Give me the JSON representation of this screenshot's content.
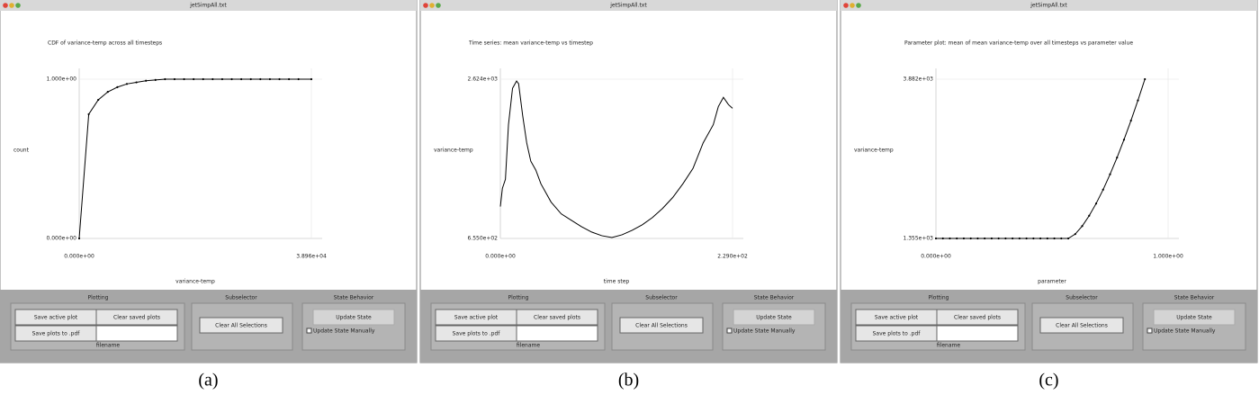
{
  "windows": [
    {
      "title": "jetSimpAll.txt",
      "plotting": "Plotting",
      "save_active": "Save active plot",
      "clear_saved": "Clear saved plots",
      "save_pdf": "Save plots to .pdf",
      "filename": "filename",
      "subselector": "Subselector",
      "clear_all": "Clear All Selections",
      "state_behavior": "State Behavior",
      "update_state": "Update State",
      "update_manually": "Update State Manually",
      "caption": "(a)"
    },
    {
      "title": "jetSimpAll.txt",
      "plotting": "Plotting",
      "save_active": "Save active plot",
      "clear_saved": "Clear saved plots",
      "save_pdf": "Save plots to .pdf",
      "filename": "filename",
      "subselector": "Subselector",
      "clear_all": "Clear All Selections",
      "state_behavior": "State Behavior",
      "update_state": "Update State",
      "update_manually": "Update State Manually",
      "caption": "(b)"
    },
    {
      "title": "jetSimpAll.txt",
      "plotting": "Plotting",
      "save_active": "Save active plot",
      "clear_saved": "Clear saved plots",
      "save_pdf": "Save plots to .pdf",
      "filename": "filename",
      "subselector": "Subselector",
      "clear_all": "Clear All Selections",
      "state_behavior": "State Behavior",
      "update_state": "Update State",
      "update_manually": "Update State Manually",
      "caption": "(c)"
    }
  ],
  "chart_data": [
    {
      "type": "line",
      "title": "CDF of variance-temp across all timesteps",
      "x_label": "variance-temp",
      "y_label": "count",
      "color": "#000000",
      "markers": true,
      "x": [
        0,
        1600,
        3200,
        4800,
        6400,
        8000,
        9600,
        11200,
        12800,
        14400,
        16000,
        17600,
        19200,
        20800,
        22400,
        24000,
        25600,
        27200,
        28800,
        30400,
        32000,
        33600,
        35200,
        36800,
        38960
      ],
      "values": [
        0,
        0.78,
        0.87,
        0.92,
        0.95,
        0.97,
        0.98,
        0.99,
        0.995,
        1,
        1,
        1,
        1,
        1,
        1,
        1,
        1,
        1,
        1,
        1,
        1,
        1,
        1,
        1,
        1
      ],
      "xlim": [
        0,
        38960
      ],
      "ylim": [
        0,
        1
      ],
      "xticks": [
        {
          "value": 0,
          "label": "0.000e+00"
        },
        {
          "value": 38960,
          "label": "3.896e+04"
        }
      ],
      "yticks": [
        {
          "value": 0,
          "label": "0.000e+00"
        },
        {
          "value": 1,
          "label": "1.000e+00"
        }
      ]
    },
    {
      "type": "line",
      "title": "Time series: mean variance-temp vs timestep",
      "x_label": "time step",
      "y_label": "variance-temp",
      "color": "#000000",
      "markers": false,
      "x": [
        0,
        2,
        5,
        8,
        12,
        16,
        18,
        22,
        26,
        30,
        35,
        40,
        50,
        60,
        70,
        80,
        90,
        100,
        110,
        120,
        130,
        140,
        150,
        160,
        170,
        180,
        190,
        200,
        210,
        215,
        220,
        225,
        229
      ],
      "values": [
        1049,
        1274,
        1386,
        2061,
        2511,
        2601,
        2568,
        2174,
        1836,
        1611,
        1499,
        1330,
        1105,
        959,
        880,
        801,
        734,
        689,
        666,
        700,
        756,
        824,
        914,
        1026,
        1161,
        1330,
        1521,
        1836,
        2061,
        2286,
        2399,
        2309,
        2264
      ],
      "xlim": [
        0,
        229
      ],
      "ylim": [
        655,
        2624
      ],
      "xticks": [
        {
          "value": 0,
          "label": "0.000e+00"
        },
        {
          "value": 229,
          "label": "2.290e+02"
        }
      ],
      "yticks": [
        {
          "value": 655,
          "label": "6.550e+02"
        },
        {
          "value": 2624,
          "label": "2.624e+03"
        }
      ]
    },
    {
      "type": "line",
      "title": "Parameter plot: mean of mean variance-temp over all timesteps vs parameter value",
      "x_label": "parameter",
      "y_label": "variance-temp",
      "color": "#000000",
      "markers": true,
      "x": [
        0,
        0.03,
        0.06,
        0.09,
        0.12,
        0.15,
        0.18,
        0.21,
        0.24,
        0.27,
        0.3,
        0.33,
        0.36,
        0.39,
        0.42,
        0.45,
        0.48,
        0.51,
        0.54,
        0.57,
        0.6,
        0.63,
        0.66,
        0.69,
        0.72,
        0.75,
        0.78,
        0.81,
        0.84,
        0.87,
        0.9
      ],
      "values": [
        1355,
        1355,
        1355,
        1355,
        1355,
        1355,
        1355,
        1355,
        1355,
        1355,
        1355,
        1355,
        1355,
        1355,
        1355,
        1355,
        1355,
        1355,
        1355,
        1355,
        1424,
        1551,
        1715,
        1909,
        2129,
        2373,
        2638,
        2922,
        3225,
        3545,
        3882
      ],
      "xlim": [
        0,
        1
      ],
      "ylim": [
        1355,
        3882
      ],
      "xticks": [
        {
          "value": 0,
          "label": "0.000e+00"
        },
        {
          "value": 1,
          "label": "1.000e+00"
        }
      ],
      "yticks": [
        {
          "value": 1355,
          "label": "1.355e+03"
        },
        {
          "value": 3882,
          "label": "3.882e+03"
        }
      ]
    }
  ]
}
